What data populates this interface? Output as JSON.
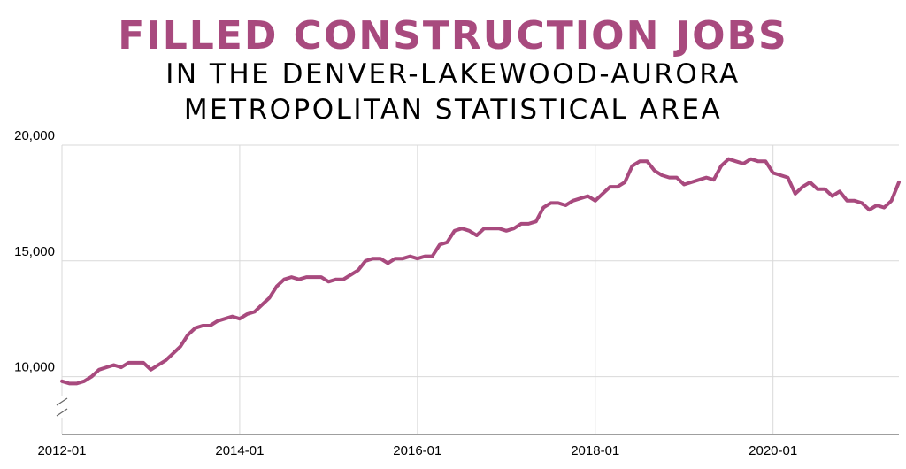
{
  "title": "FILLED CONSTRUCTION JOBS",
  "subtitle_line1": "IN THE DENVER-LAKEWOOD-AURORA",
  "subtitle_line2": "METROPOLITAN STATISTICAL AREA",
  "colors": {
    "title": "#a84a7e",
    "line": "#a84a7e",
    "grid": "#d9d9d9",
    "axis": "#666666"
  },
  "chart_data": {
    "type": "line",
    "title": "FILLED CONSTRUCTION JOBS",
    "subtitle": "IN THE DENVER-LAKEWOOD-AURORA METROPOLITAN STATISTICAL AREA",
    "xlabel": "",
    "ylabel": "",
    "x_range": [
      "2012-01",
      "2021-06"
    ],
    "ylim": [
      7500,
      20000
    ],
    "y_axis_break": true,
    "grid": true,
    "legend": "none",
    "x_ticks": [
      "2012-01",
      "2014-01",
      "2016-01",
      "2018-01",
      "2020-01"
    ],
    "y_ticks": [
      {
        "value": 10000,
        "label": "10,000"
      },
      {
        "value": 15000,
        "label": "15,000"
      },
      {
        "value": 20000,
        "label": "20,000"
      }
    ],
    "series": [
      {
        "x": [
          "2012-01",
          "2012-02",
          "2012-03",
          "2012-04",
          "2012-05",
          "2012-06",
          "2012-07",
          "2012-08",
          "2012-09",
          "2012-10",
          "2012-11",
          "2012-12",
          "2013-01",
          "2013-02",
          "2013-03",
          "2013-04",
          "2013-05",
          "2013-06",
          "2013-07",
          "2013-08",
          "2013-09",
          "2013-10",
          "2013-11",
          "2013-12",
          "2014-01",
          "2014-02",
          "2014-03",
          "2014-04",
          "2014-05",
          "2014-06",
          "2014-07",
          "2014-08",
          "2014-09",
          "2014-10",
          "2014-11",
          "2014-12",
          "2015-01",
          "2015-02",
          "2015-03",
          "2015-04",
          "2015-05",
          "2015-06",
          "2015-07",
          "2015-08",
          "2015-09",
          "2015-10",
          "2015-11",
          "2015-12",
          "2016-01",
          "2016-02",
          "2016-03",
          "2016-04",
          "2016-05",
          "2016-06",
          "2016-07",
          "2016-08",
          "2016-09",
          "2016-10",
          "2016-11",
          "2016-12",
          "2017-01",
          "2017-02",
          "2017-03",
          "2017-04",
          "2017-05",
          "2017-06",
          "2017-07",
          "2017-08",
          "2017-09",
          "2017-10",
          "2017-11",
          "2017-12",
          "2018-01",
          "2018-02",
          "2018-03",
          "2018-04",
          "2018-05",
          "2018-06",
          "2018-07",
          "2018-08",
          "2018-09",
          "2018-10",
          "2018-11",
          "2018-12",
          "2019-01",
          "2019-02",
          "2019-03",
          "2019-04",
          "2019-05",
          "2019-06",
          "2019-07",
          "2019-08",
          "2019-09",
          "2019-10",
          "2019-11",
          "2019-12",
          "2020-01",
          "2020-02",
          "2020-03",
          "2020-04",
          "2020-05",
          "2020-06",
          "2020-07",
          "2020-08",
          "2020-09",
          "2020-10",
          "2020-11",
          "2020-12",
          "2021-01",
          "2021-02",
          "2021-03",
          "2021-04",
          "2021-05",
          "2021-06"
        ],
        "values": [
          9800,
          9700,
          9700,
          9800,
          10000,
          10300,
          10400,
          10500,
          10400,
          10600,
          10600,
          10600,
          10300,
          10500,
          10700,
          11000,
          11300,
          11800,
          12100,
          12200,
          12200,
          12400,
          12500,
          12600,
          12500,
          12700,
          12800,
          13100,
          13400,
          13900,
          14200,
          14300,
          14200,
          14300,
          14300,
          14300,
          14100,
          14200,
          14200,
          14400,
          14600,
          15000,
          15100,
          15100,
          14900,
          15100,
          15100,
          15200,
          15100,
          15200,
          15200,
          15700,
          15800,
          16300,
          16400,
          16300,
          16100,
          16400,
          16400,
          16400,
          16300,
          16400,
          16600,
          16600,
          16700,
          17300,
          17500,
          17500,
          17400,
          17600,
          17700,
          17800,
          17600,
          17900,
          18200,
          18200,
          18400,
          19100,
          19300,
          19300,
          18900,
          18700,
          18600,
          18600,
          18300,
          18400,
          18500,
          18600,
          18500,
          19100,
          19400,
          19300,
          19200,
          19400,
          19300,
          19300,
          18800,
          18700,
          18600,
          17900,
          18200,
          18400,
          18100,
          18100,
          17800,
          18000,
          17600,
          17600,
          17500,
          17200,
          17400,
          17300,
          17600,
          18400
        ]
      }
    ]
  }
}
